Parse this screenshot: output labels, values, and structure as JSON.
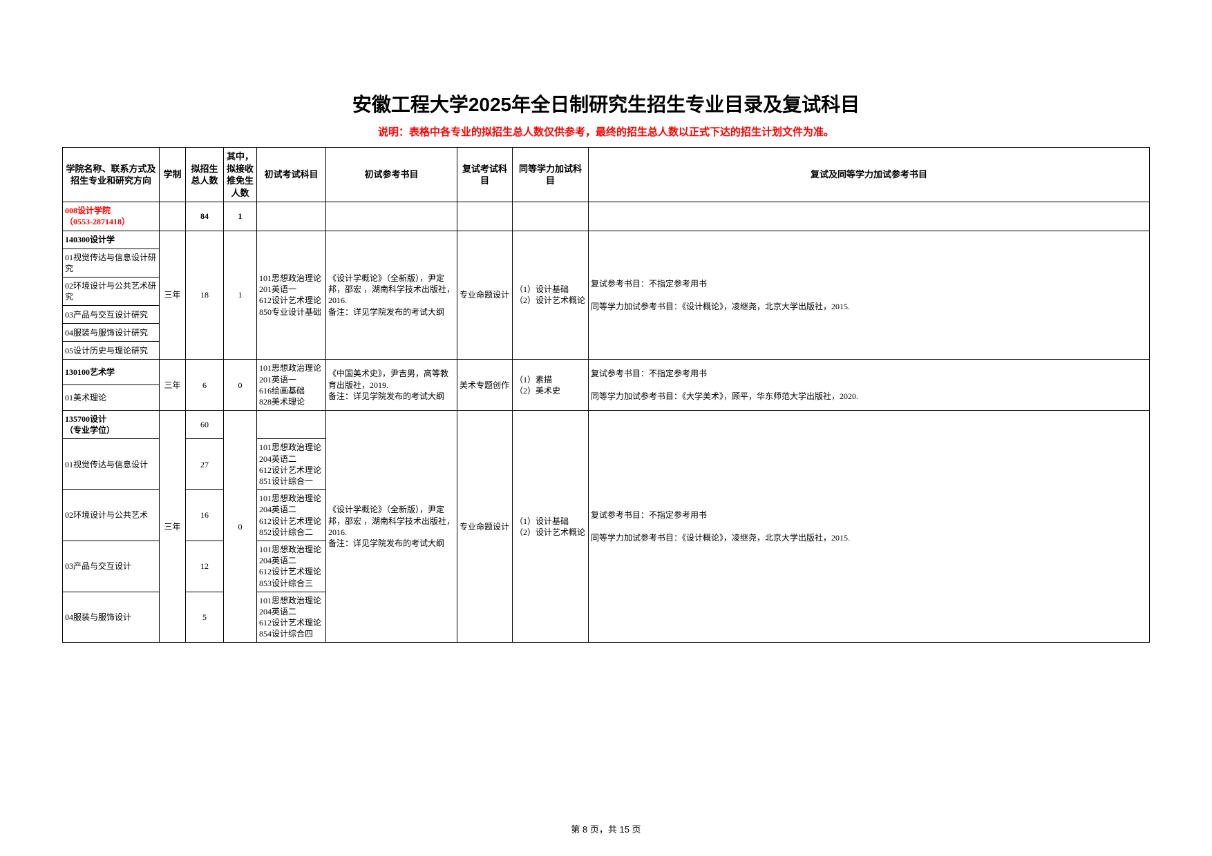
{
  "title": "安徽工程大学2025年全日制研究生招生专业目录及复试科目",
  "subtitle": "说明：表格中各专业的拟招生总人数仅供参考，最终的招生总人数以正式下达的招生计划文件为准。",
  "headers": {
    "col1": "学院名称、联系方式及招生专业和研究方向",
    "col2": "学制",
    "col3": "拟招生总人数",
    "col4": "其中，拟接收推免生人数",
    "col5": "初试考试科目",
    "col6": "初试参考书目",
    "col7": "复试考试科目",
    "col8": "同等学力加试科目",
    "col9": "复试及同等学力加试参考书目"
  },
  "dept": {
    "name": "008设计学院",
    "phone": "（0553-2871418）",
    "total": "84",
    "tuimian": "1"
  },
  "block1": {
    "major": "140300设计学",
    "dir1": "01视觉传达与信息设计研究",
    "dir2": "02环境设计与公共艺术研究",
    "dir3": "03产品与交互设计研究",
    "dir4": "04服装与服饰设计研究",
    "dir5": "05设计历史与理论研究",
    "duration": "三年",
    "count": "18",
    "tuimian": "1",
    "exams": "101思想政治理论\n201英语一\n612设计艺术理论\n850专业设计基础",
    "books": "《设计学概论》（全新版），尹定邦，邵宏 ，湖南科学技术出版社，2016.\n备注：详见学院发布的考试大纲",
    "fushi": "专业命题设计",
    "jiashi": "（1）设计基础    （2）设计艺术概论",
    "refs": "复试参考书目：不指定参考用书\n\n同等学力加试参考书目：《设计概论》，凌继尧，北京大学出版社，2015."
  },
  "block2": {
    "major": "130100艺术学",
    "dir1": "01美术理论",
    "duration": "三年",
    "count": "6",
    "tuimian": "0",
    "exams": "101思想政治理论\n201英语一\n616绘画基础\n828美术理论",
    "books": "《中国美术史》，尹吉男，高等教育出版社，2019.\n备注：详见学院发布的考试大纲",
    "fushi": "美术专题创作",
    "jiashi": "（1）素描\n（2）美术史",
    "refs": "复试参考书目：不指定参考用书\n\n同等学力加试参考书目：《大学美术》，顾平，华东师范大学出版社，2020."
  },
  "block3": {
    "major": "135700设计\n（专业学位）",
    "count_total": "60",
    "dir1": "01视觉传达与信息设计",
    "count1": "27",
    "exams1": "101思想政治理论\n204英语二\n612设计艺术理论\n851设计综合一",
    "dir2": "02环境设计与公共艺术",
    "count2": "16",
    "exams2": "101思想政治理论\n204英语二\n612设计艺术理论\n852设计综合二",
    "dir3": "03产品与交互设计",
    "count3": "12",
    "exams3": "101思想政治理论\n204英语二\n612设计艺术理论\n853设计综合三",
    "dir4": "04服装与服饰设计",
    "count4": "5",
    "exams4": "101思想政治理论\n204英语二\n612设计艺术理论\n854设计综合四",
    "duration": "三年",
    "tuimian": "0",
    "books": "《设计学概论》（全新版），尹定邦，邵宏 ，湖南科学技术出版社，2016.\n备注：详见学院发布的考试大纲",
    "fushi": "专业命题设计",
    "jiashi": "（1）设计基础    （2）设计艺术概论",
    "refs": "复试参考书目：不指定参考用书\n\n同等学力加试参考书目：《设计概论》，凌继尧，北京大学出版社，2015."
  },
  "footer": "第 8 页，共 15 页"
}
